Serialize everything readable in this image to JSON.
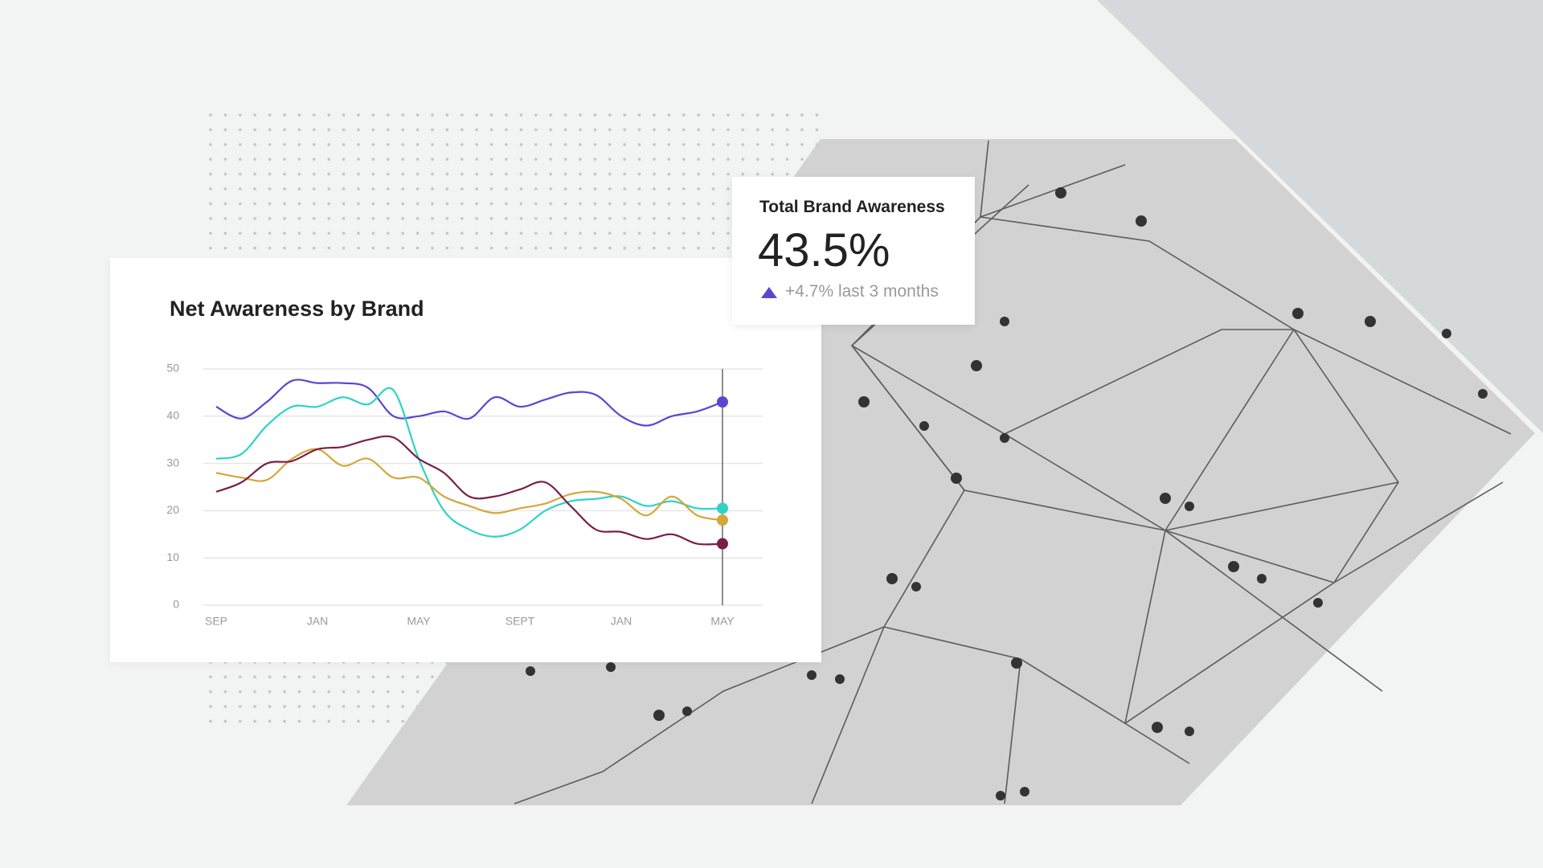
{
  "chart_data": {
    "type": "line",
    "title": "Net Awareness by Brand",
    "categories": [
      "SEP",
      null,
      null,
      null,
      "JAN",
      null,
      null,
      null,
      "MAY",
      null,
      null,
      null,
      "SEPT",
      null,
      null,
      null,
      "JAN",
      null,
      null,
      null,
      "MAY"
    ],
    "series": [
      {
        "color": "#5b46d1",
        "values": [
          42,
          39.5,
          43,
          47.5,
          47,
          47,
          46,
          40,
          40,
          41,
          39.5,
          44,
          42,
          43.5,
          45,
          44.5,
          40,
          38,
          40,
          41,
          43
        ]
      },
      {
        "color": "#2ed3c6",
        "values": [
          31,
          32,
          38,
          42,
          42,
          44,
          42.5,
          45.5,
          31,
          20,
          16,
          14.5,
          16,
          20,
          22,
          22.5,
          23,
          21,
          22,
          20.5,
          20.5
        ]
      },
      {
        "color": "#d4a73b",
        "values": [
          28,
          27,
          26.5,
          31,
          33,
          29.5,
          31,
          27,
          27,
          23,
          21,
          19.5,
          20.5,
          21.5,
          23.5,
          24,
          22.5,
          19,
          23,
          19,
          18
        ]
      },
      {
        "color": "#7a1f48",
        "values": [
          24,
          26,
          30,
          30.5,
          33,
          33.5,
          35,
          35.5,
          31,
          28,
          23,
          23,
          24.5,
          26,
          21,
          16,
          15.5,
          14,
          15,
          13,
          13
        ]
      }
    ],
    "ylim": [
      0,
      50
    ],
    "yticks": [
      0,
      10,
      20,
      30,
      40,
      50
    ],
    "grid": true
  },
  "kpi": {
    "title": "Total Brand Awareness",
    "value": "43.5%",
    "change": "+4.7% last 3 months"
  }
}
